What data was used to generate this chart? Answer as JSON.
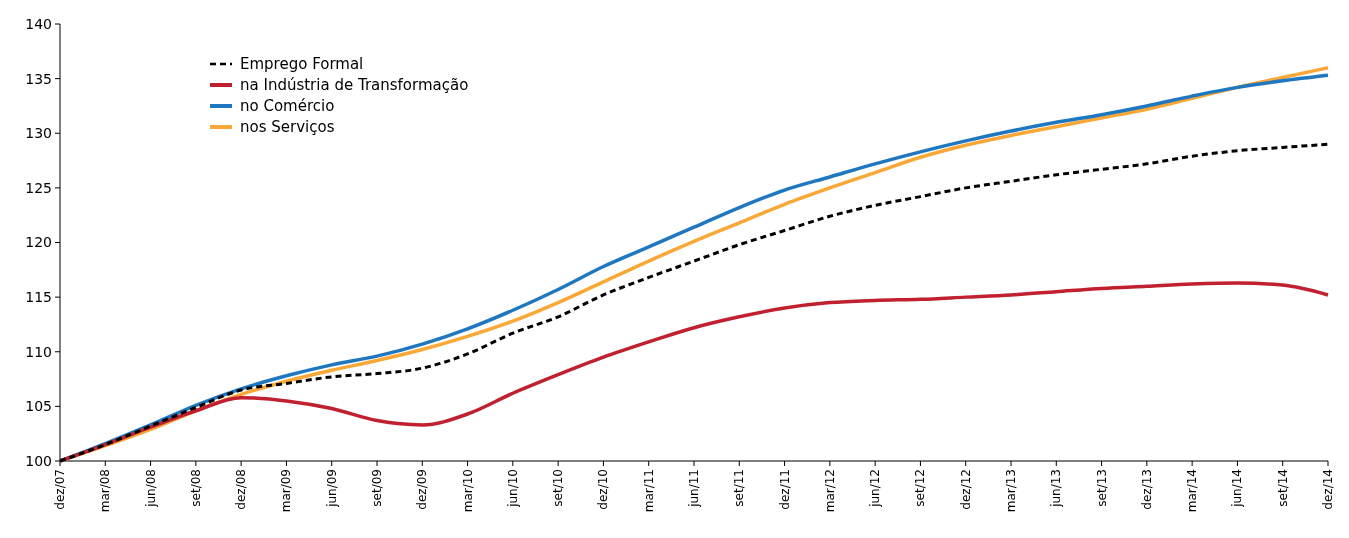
{
  "chart_data": {
    "type": "line",
    "categories": [
      "dez/07",
      "mar/08",
      "jun/08",
      "set/08",
      "dez/08",
      "mar/09",
      "jun/09",
      "set/09",
      "dez/09",
      "mar/10",
      "jun/10",
      "set/10",
      "dez/10",
      "mar/11",
      "jun/11",
      "set/11",
      "dez/11",
      "mar/12",
      "jun/12",
      "set/12",
      "dez/12",
      "mar/13",
      "jun/13",
      "set/13",
      "dez/13",
      "mar/14",
      "jun/14",
      "set/14",
      "dez/14"
    ],
    "series": [
      {
        "name": "Emprego Formal",
        "color": "#000000",
        "line_style": "dashed",
        "values": [
          100,
          101.5,
          103.2,
          104.9,
          106.5,
          107.1,
          107.7,
          108,
          108.5,
          109.8,
          111.7,
          113.2,
          115.2,
          116.8,
          118.3,
          119.8,
          121.1,
          122.4,
          123.4,
          124.2,
          125,
          125.6,
          126.2,
          126.7,
          127.2,
          127.9,
          128.4,
          128.7,
          129
        ]
      },
      {
        "name": "na Indústria de Transformação",
        "color": "#c0202f",
        "values": [
          100,
          101.5,
          103.1,
          104.6,
          105.8,
          105.5,
          104.8,
          103.7,
          103.3,
          104.3,
          106.2,
          107.9,
          109.5,
          110.9,
          112.2,
          113.2,
          114,
          114.5,
          114.7,
          114.8,
          115,
          115.2,
          115.5,
          115.8,
          116,
          116.2,
          116.3,
          116.1,
          115.2
        ]
      },
      {
        "name": "no Comércio",
        "color": "#1f77c0",
        "values": [
          100,
          101.6,
          103.3,
          105.1,
          106.6,
          107.8,
          108.8,
          109.6,
          110.7,
          112.1,
          113.8,
          115.7,
          117.8,
          119.6,
          121.4,
          123.2,
          124.8,
          126,
          127.2,
          128.3,
          129.3,
          130.2,
          131,
          131.7,
          132.5,
          133.4,
          134.2,
          134.8,
          135.3
        ]
      },
      {
        "name": "nos Serviços",
        "color": "#f9a838",
        "values": [
          100,
          101.4,
          102.9,
          104.6,
          106.1,
          107.3,
          108.3,
          109.2,
          110.2,
          111.4,
          112.8,
          114.5,
          116.4,
          118.3,
          120.1,
          121.8,
          123.5,
          125,
          126.4,
          127.8,
          128.9,
          129.8,
          130.6,
          131.4,
          132.2,
          133.2,
          134.2,
          135.1,
          136
        ]
      }
    ],
    "ylim": [
      100,
      140
    ],
    "yticks": [
      100,
      105,
      110,
      115,
      120,
      125,
      130,
      135,
      140
    ],
    "grid": false,
    "legend": "top left"
  }
}
